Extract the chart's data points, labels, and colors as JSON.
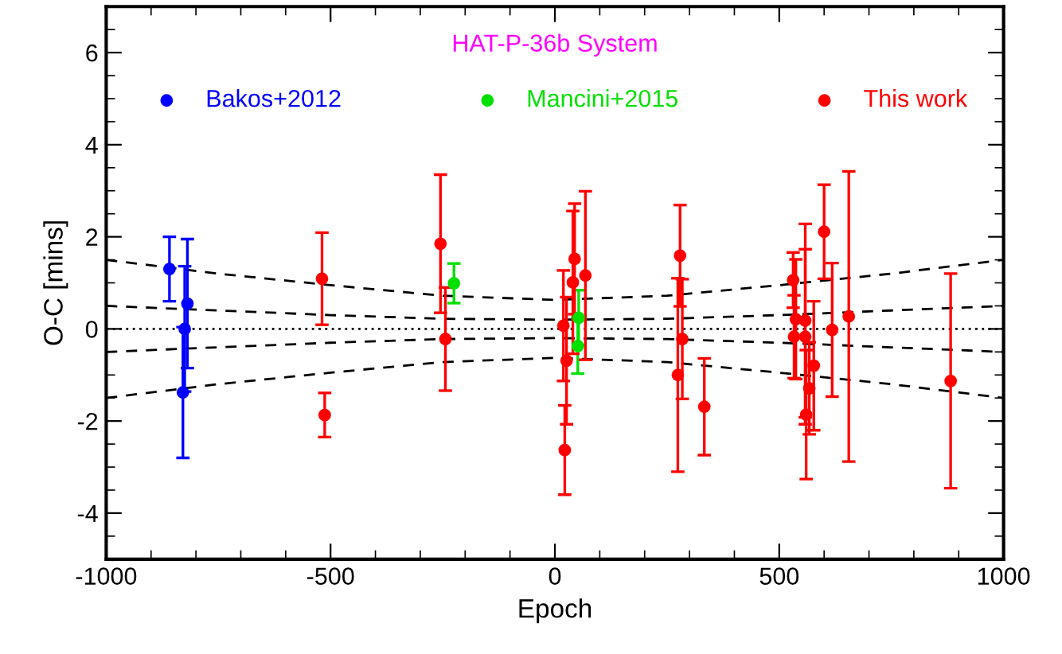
{
  "chart_data": {
    "type": "scatter",
    "title": "HAT-P-36b System",
    "xlabel": "Epoch",
    "ylabel": "O-C [mins]",
    "xlim": [
      -1000,
      1000
    ],
    "xticks": [
      -1000,
      -500,
      0,
      500,
      1000
    ],
    "ylim": [
      -5,
      7
    ],
    "yticks": [
      -4,
      -2,
      0,
      2,
      4,
      6
    ],
    "grid": false,
    "legend": "top",
    "marker": "circle",
    "ref_lines": [
      {
        "axis": "y",
        "value": 0,
        "color": "#000000",
        "line_style": "dotted"
      }
    ],
    "series": [
      {
        "name": "Bakos+2012",
        "color": "#0000ff",
        "x": [
          -859,
          -829,
          -825,
          -819
        ],
        "values": [
          1.3,
          -1.38,
          0.0,
          0.55
        ],
        "errors": [
          0.7,
          1.42,
          1.36,
          1.4
        ]
      },
      {
        "name": "Mancini+2015",
        "color": "#00e000",
        "x": [
          -225,
          51,
          53
        ],
        "values": [
          0.99,
          -0.37,
          0.24
        ],
        "errors": [
          0.43,
          0.6,
          0.6
        ]
      },
      {
        "name": "This work",
        "color": "#ff0000",
        "x": [
          -519,
          -513,
          -255,
          -244,
          19,
          22,
          26,
          40,
          44,
          68,
          274,
          279,
          284,
          333,
          531,
          533,
          537,
          558,
          558,
          560,
          567,
          577,
          600,
          618,
          655,
          882
        ],
        "values": [
          1.09,
          -1.87,
          1.85,
          -0.22,
          0.07,
          -2.63,
          -0.69,
          1.01,
          1.52,
          1.16,
          -1.0,
          1.59,
          -0.22,
          -1.69,
          1.06,
          -0.17,
          0.21,
          0.18,
          -0.17,
          -1.86,
          -1.29,
          -0.8,
          2.11,
          -0.02,
          0.27,
          -1.13
        ],
        "errors": [
          1.0,
          0.48,
          1.5,
          1.12,
          1.2,
          0.97,
          1.38,
          1.55,
          1.2,
          1.83,
          2.1,
          1.1,
          1.3,
          1.05,
          0.6,
          0.9,
          1.3,
          2.1,
          1.9,
          1.4,
          1.0,
          1.4,
          1.02,
          1.45,
          3.15,
          2.33
        ]
      },
      {
        "type": "line",
        "marker": "none",
        "color": "#000000",
        "line_style": "dashed",
        "x": [
          -1000,
          -750,
          -500,
          -250,
          0,
          250,
          500,
          750,
          1000
        ],
        "values": [
          1.5,
          1.2,
          0.95,
          0.72,
          0.63,
          0.72,
          0.95,
          1.2,
          1.5
        ]
      },
      {
        "type": "line",
        "marker": "none",
        "color": "#000000",
        "line_style": "dashed",
        "x": [
          -1000,
          -750,
          -500,
          -250,
          0,
          250,
          500,
          750,
          1000
        ],
        "values": [
          0.5,
          0.4,
          0.3,
          0.22,
          0.2,
          0.22,
          0.3,
          0.4,
          0.5
        ]
      },
      {
        "type": "line",
        "marker": "none",
        "color": "#000000",
        "line_style": "dashed",
        "x": [
          -1000,
          -750,
          -500,
          -250,
          0,
          250,
          500,
          750,
          1000
        ],
        "values": [
          -0.5,
          -0.4,
          -0.3,
          -0.22,
          -0.2,
          -0.22,
          -0.3,
          -0.4,
          -0.5
        ]
      },
      {
        "type": "line",
        "marker": "none",
        "color": "#000000",
        "line_style": "dashed",
        "x": [
          -1000,
          -750,
          -500,
          -250,
          0,
          250,
          500,
          750,
          1000
        ],
        "values": [
          -1.5,
          -1.2,
          -0.95,
          -0.72,
          -0.63,
          -0.72,
          -0.95,
          -1.2,
          -1.5
        ]
      }
    ]
  }
}
